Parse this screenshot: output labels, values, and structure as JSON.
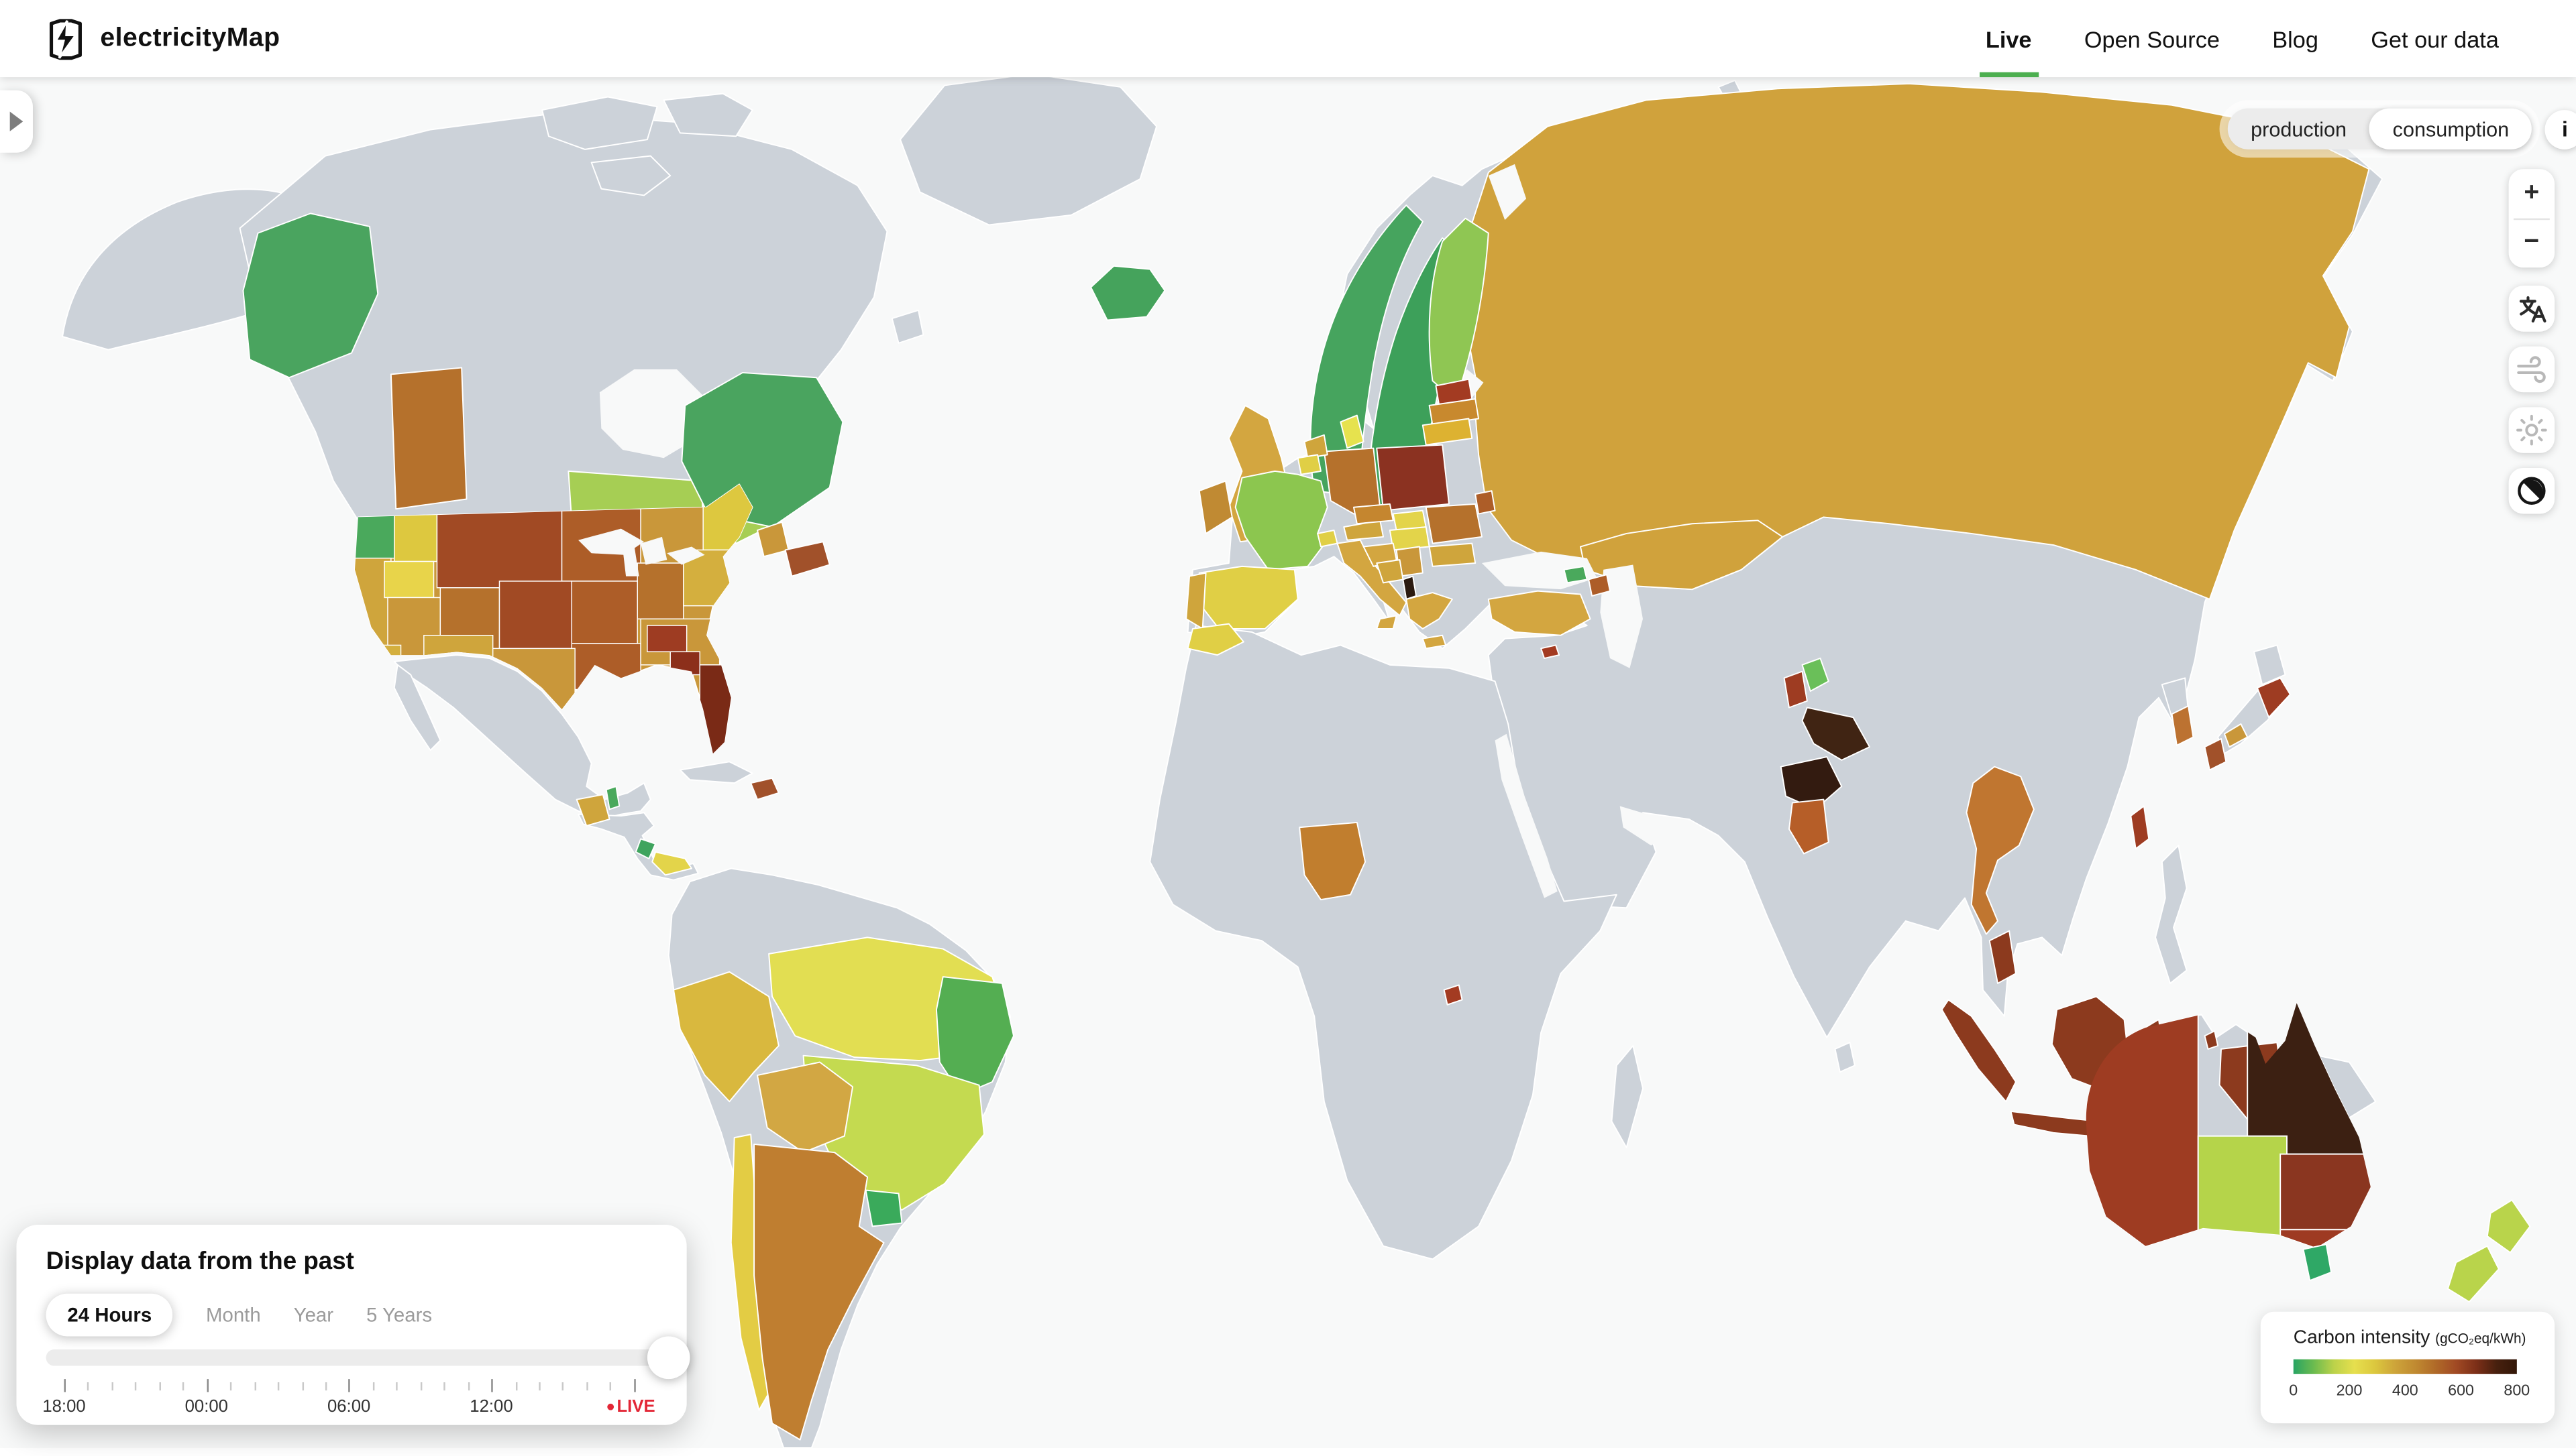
{
  "header": {
    "brand": "electricityMap",
    "nav": [
      {
        "label": "Live",
        "active": true
      },
      {
        "label": "Open Source",
        "active": false
      },
      {
        "label": "Blog",
        "active": false
      },
      {
        "label": "Get our data",
        "active": false
      }
    ]
  },
  "map_toolbar": {
    "mode_options": [
      {
        "label": "production",
        "selected": false
      },
      {
        "label": "consumption",
        "selected": true
      }
    ],
    "info_button_label": "i"
  },
  "map_buttons": {
    "zoom_in": "+",
    "zoom_out": "−"
  },
  "time_panel": {
    "title": "Display data from the past",
    "ranges": [
      {
        "label": "24 Hours",
        "active": true
      },
      {
        "label": "Month",
        "active": false
      },
      {
        "label": "Year",
        "active": false
      },
      {
        "label": "5 Years",
        "active": false
      }
    ],
    "hour_tick_count": 25,
    "major_tick_every": 6,
    "tick_labels": [
      "18:00",
      "00:00",
      "06:00",
      "12:00"
    ],
    "live_label": "LIVE",
    "slider_value": 1
  },
  "legend": {
    "title": "Carbon intensity",
    "unit": "(gCO₂eq/kWh)",
    "tick_labels": [
      "0",
      "200",
      "400",
      "600",
      "800"
    ],
    "gradient_stops": [
      "#27a463",
      "#6cbb4f",
      "#bcd24a",
      "#e6df4e",
      "#dcc83e",
      "#cda43a",
      "#c08a31",
      "#b06a28",
      "#a14a24",
      "#7c2f18",
      "#47200e",
      "#331708"
    ]
  },
  "map": {
    "ocean_color": "#f8f9f9",
    "no_data_color": "#ccd2d9",
    "border_color": "#ffffff",
    "live_accent": "#e32636",
    "nav_active_underline": "#4caf50",
    "regions": {
      "british_columbia": {
        "name": "British Columbia",
        "color": "#4aa45f"
      },
      "alberta": {
        "name": "Alberta",
        "color": "#b5712c"
      },
      "manitoba": {
        "name": "Manitoba",
        "color": "#a6ce54"
      },
      "ontario": {
        "name": "Ontario",
        "color": "#a6ce54"
      },
      "quebec": {
        "name": "Québec",
        "color": "#4aa45f"
      },
      "new_brunswick": {
        "name": "New Brunswick",
        "color": "#c9973a"
      },
      "nova_scotia": {
        "name": "Nova Scotia",
        "color": "#a1512a"
      },
      "us_pacific_northwest": {
        "name": "US Pacific Northwest",
        "color": "#4aa95c"
      },
      "us_west_coast": {
        "name": "US West Coast",
        "color": "#cfa53c"
      },
      "us_idaho": {
        "name": "US Idaho",
        "color": "#ddc83f"
      },
      "us_wyoming": {
        "name": "US Wyoming",
        "color": "#e8d44a"
      },
      "us_montana_dakotas": {
        "name": "US Montana-Dakotas",
        "color": "#a14a24"
      },
      "us_upper_midwest": {
        "name": "US Upper Midwest",
        "color": "#ad5d28"
      },
      "us_great_lakes_east": {
        "name": "US Great Lakes East",
        "color": "#c9973a"
      },
      "us_new_england": {
        "name": "US New England",
        "color": "#ddc83f"
      },
      "us_mid_atlantic": {
        "name": "US Mid-Atlantic",
        "color": "#d4af3e"
      },
      "us_nevada_utah": {
        "name": "US Nevada-Utah",
        "color": "#c9973a"
      },
      "us_colorado": {
        "name": "US Colorado",
        "color": "#b5712c"
      },
      "us_central_plains": {
        "name": "US Central Plains",
        "color": "#a14a24"
      },
      "us_missouri_valley": {
        "name": "US Missouri Valley",
        "color": "#ad5d28"
      },
      "us_ohio_valley": {
        "name": "US Ohio Valley",
        "color": "#b5712c"
      },
      "us_arkansas_louisiana": {
        "name": "US Arkansas-Louisiana",
        "color": "#ad5d28"
      },
      "us_texas": {
        "name": "US Texas",
        "color": "#c9973a"
      },
      "us_tennessee": {
        "name": "US Tennessee",
        "color": "#9e3c22"
      },
      "us_southeast": {
        "name": "US Southeast",
        "color": "#c9973a"
      },
      "us_georgia": {
        "name": "US Georgia",
        "color": "#8c2f1b"
      },
      "us_florida": {
        "name": "US Florida",
        "color": "#7a2a16"
      },
      "us_southern_california": {
        "name": "US Southern California",
        "color": "#d4af3e"
      },
      "us_southwest": {
        "name": "US Southwest",
        "color": "#cfa53c"
      },
      "guatemala": {
        "name": "Guatemala",
        "color": "#cfa53c"
      },
      "belize": {
        "name": "Belize",
        "color": "#4aa95c"
      },
      "costa_rica": {
        "name": "Costa Rica",
        "color": "#3fa45e"
      },
      "panama": {
        "name": "Panama",
        "color": "#e3d44a"
      },
      "dominican_republic": {
        "name": "Dominican Republic",
        "color": "#a1512a"
      },
      "peru": {
        "name": "Peru",
        "color": "#d9b83e"
      },
      "bolivia": {
        "name": "Bolivia",
        "color": "#d2a743"
      },
      "chile": {
        "name": "Chile",
        "color": "#e3cc44"
      },
      "argentina": {
        "name": "Argentina",
        "color": "#bf7e30"
      },
      "uruguay": {
        "name": "Uruguay",
        "color": "#3aaa5b"
      },
      "brazil_north": {
        "name": "Brazil North",
        "color": "#e2de52"
      },
      "brazil_northeast": {
        "name": "Brazil Northeast",
        "color": "#54ae52"
      },
      "brazil_central_south": {
        "name": "Brazil Central-South",
        "color": "#c4da50"
      },
      "iceland": {
        "name": "Iceland",
        "color": "#45a35c"
      },
      "norway": {
        "name": "Norway",
        "color": "#46a45e"
      },
      "sweden": {
        "name": "Sweden",
        "color": "#3da05a"
      },
      "finland": {
        "name": "Finland",
        "color": "#8fc653"
      },
      "denmark": {
        "name": "Denmark",
        "color": "#e6e24e"
      },
      "united_kingdom": {
        "name": "United Kingdom",
        "color": "#d3a640"
      },
      "ireland": {
        "name": "Ireland",
        "color": "#c08a33"
      },
      "france": {
        "name": "France",
        "color": "#8cc64f"
      },
      "spain": {
        "name": "Spain",
        "color": "#e0cf45"
      },
      "portugal": {
        "name": "Portugal",
        "color": "#cfa53c"
      },
      "belgium": {
        "name": "Belgium",
        "color": "#e0cf45"
      },
      "netherlands": {
        "name": "Netherlands",
        "color": "#cfa53c"
      },
      "germany": {
        "name": "Germany",
        "color": "#b5712c"
      },
      "poland": {
        "name": "Poland",
        "color": "#8b3221"
      },
      "czechia": {
        "name": "Czechia",
        "color": "#c5862f"
      },
      "slovakia": {
        "name": "Slovakia",
        "color": "#e3d44a"
      },
      "austria": {
        "name": "Austria",
        "color": "#cfa53c"
      },
      "switzerland": {
        "name": "Switzerland",
        "color": "#e0cf45"
      },
      "italy": {
        "name": "Italy",
        "color": "#d3a640"
      },
      "estonia": {
        "name": "Estonia",
        "color": "#a33b22"
      },
      "latvia": {
        "name": "Latvia",
        "color": "#c8892e"
      },
      "lithuania": {
        "name": "Lithuania",
        "color": "#ddb231"
      },
      "romania": {
        "name": "Romania",
        "color": "#b5712c"
      },
      "moldova": {
        "name": "Moldova",
        "color": "#ad5d28"
      },
      "hungary": {
        "name": "Hungary",
        "color": "#e3d44a"
      },
      "croatia": {
        "name": "Croatia",
        "color": "#d3a640"
      },
      "serbia": {
        "name": "Serbia",
        "color": "#c9973a"
      },
      "bosnia_herzegovina": {
        "name": "Bosnia and Herzegovina",
        "color": "#cfa53c"
      },
      "kosovo": {
        "name": "Kosovo",
        "color": "#2b1a10"
      },
      "greece": {
        "name": "Greece",
        "color": "#d3a640"
      },
      "bulgaria": {
        "name": "Bulgaria",
        "color": "#cfa53c"
      },
      "russia": {
        "name": "Russia",
        "color": "#d0a23c"
      },
      "turkey": {
        "name": "Turkey",
        "color": "#d3a640"
      },
      "georgia_country": {
        "name": "Georgia",
        "color": "#4aa95c"
      },
      "azerbaijan": {
        "name": "Azerbaijan",
        "color": "#ad5d28"
      },
      "cyprus": {
        "name": "Cyprus",
        "color": "#a33b22"
      },
      "morocco": {
        "name": "Morocco",
        "color": "#e0cf45"
      },
      "nigeria": {
        "name": "Nigeria",
        "color": "#c17e2e"
      },
      "burundi": {
        "name": "Burundi",
        "color": "#a33b22"
      },
      "india_himachal_pradesh": {
        "name": "Himachal Pradesh",
        "color": "#6abf59"
      },
      "india_punjab": {
        "name": "Punjab",
        "color": "#9e3c22"
      },
      "india_uttar_pradesh": {
        "name": "Uttar Pradesh",
        "color": "#402413"
      },
      "india_maharashtra": {
        "name": "Maharashtra",
        "color": "#331b10"
      },
      "india_karnataka": {
        "name": "Karnataka",
        "color": "#b65e28"
      },
      "thailand": {
        "name": "Thailand",
        "color": "#c07630"
      },
      "peninsular_malaysia": {
        "name": "Peninsular Malaysia",
        "color": "#8c3a1e"
      },
      "sumatra": {
        "name": "Sumatra",
        "color": "#8c3a1e"
      },
      "java": {
        "name": "Java",
        "color": "#8c3a1e"
      },
      "borneo": {
        "name": "Borneo",
        "color": "#8c3a1e"
      },
      "sulawesi": {
        "name": "Sulawesi",
        "color": "#8c3a1e"
      },
      "lesser_sunda": {
        "name": "Lesser Sunda Islands",
        "color": "#8c3a1e"
      },
      "maluku_1": {
        "name": "Maluku",
        "color": "#8c3a1e"
      },
      "maluku_2": {
        "name": "Maluku",
        "color": "#8c3a1e"
      },
      "indonesian_papua": {
        "name": "Indonesian Papua",
        "color": "#8c3a1e"
      },
      "taiwan": {
        "name": "Taiwan",
        "color": "#9e3c22"
      },
      "south_korea": {
        "name": "South Korea",
        "color": "#bc7231"
      },
      "japan_tohoku": {
        "name": "Japan Tōhoku",
        "color": "#9e3c22"
      },
      "japan_chugoku": {
        "name": "Japan Chūgoku",
        "color": "#c9973a"
      },
      "japan_kyushu": {
        "name": "Japan Kyūshū",
        "color": "#a1512a"
      },
      "australia_western": {
        "name": "Western Australia",
        "color": "#9e3c22"
      },
      "australia_south": {
        "name": "South Australia",
        "color": "#b5d44a"
      },
      "australia_queensland": {
        "name": "Queensland",
        "color": "#3c2012"
      },
      "australia_nsw": {
        "name": "New South Wales",
        "color": "#8a3620"
      },
      "australia_victoria": {
        "name": "Victoria",
        "color": "#9e3a22"
      },
      "tasmania": {
        "name": "Tasmania",
        "color": "#2fa866"
      },
      "new_zealand": {
        "name": "New Zealand",
        "color": "#b9d44b"
      },
      "kazakhstan": {
        "name": "Kazakhstan",
        "color": "#d0a23c"
      }
    }
  }
}
